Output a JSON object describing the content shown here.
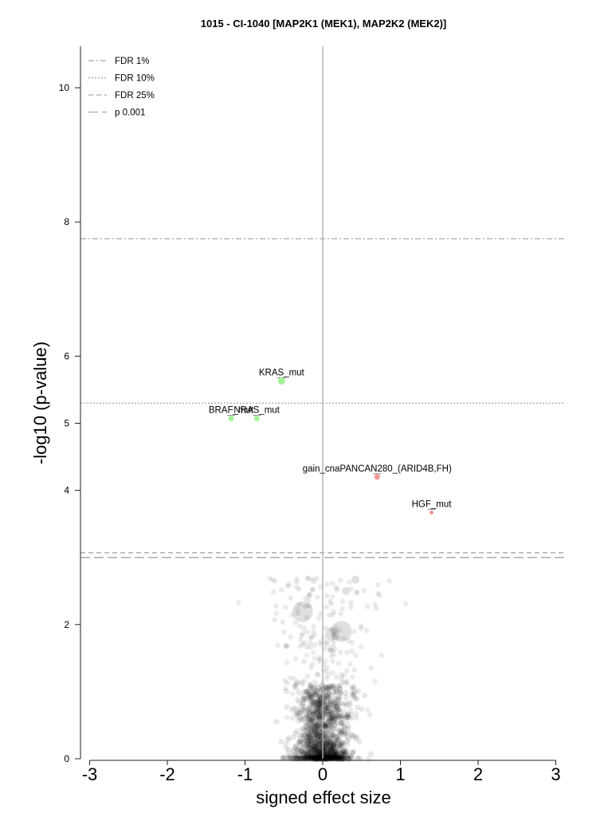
{
  "chart_data": {
    "type": "scatter",
    "title": "1015 - CI-1040 [MAP2K1 (MEK1), MAP2K2 (MEK2)]",
    "xlabel": "signed effect size",
    "ylabel": "-log10 (p-value)",
    "xlim": [
      -3.1,
      3.1
    ],
    "ylim": [
      0,
      10.6
    ],
    "x_ticks": [
      "-3",
      "-2",
      "-1",
      "0",
      "1",
      "2",
      "3"
    ],
    "y_ticks": [
      "0",
      "2",
      "4",
      "5",
      "6",
      "8",
      "10"
    ],
    "thresholds": [
      {
        "name": "FDR 1%",
        "y": 7.75,
        "style": "dash-dot",
        "color": "#a8a8a8"
      },
      {
        "name": "FDR 10%",
        "y": 5.3,
        "style": "dotted",
        "color": "#a8a8a8"
      },
      {
        "name": "FDR 25%",
        "y": 3.07,
        "style": "dashed",
        "color": "#a8a8a8"
      },
      {
        "name": "p 0.001",
        "y": 3.0,
        "style": "long-dash",
        "color": "#a8a8a8"
      }
    ],
    "legend_position": "top-left",
    "labeled_points": [
      {
        "label": "KRAS_mut",
        "x": -0.53,
        "y": 5.63,
        "color": "#a6f29a",
        "size": 9
      },
      {
        "label": "BRAF_mut",
        "x": -1.18,
        "y": 5.07,
        "color": "#a6f29a",
        "size": 7
      },
      {
        "label": "NRAS_mut",
        "x": -0.85,
        "y": 5.07,
        "color": "#a6f29a",
        "size": 7
      },
      {
        "label": "gain_cnaPANCAN280_(ARID4B,FH)",
        "x": 0.7,
        "y": 4.2,
        "color": "#f4948f",
        "size": 7
      },
      {
        "label": "HGF_mut",
        "x": 1.4,
        "y": 3.67,
        "color": "#f4948f",
        "size": 5
      }
    ],
    "background_points_color": "#000000",
    "large_background_points": [
      {
        "x": -0.26,
        "y": 2.19,
        "size": 26
      },
      {
        "x": 0.24,
        "y": 1.9,
        "size": 26
      },
      {
        "x": 0.12,
        "y": 1.86,
        "size": 17
      },
      {
        "x": 0.3,
        "y": 2.5,
        "size": 10
      },
      {
        "x": 0.42,
        "y": 2.67,
        "size": 10
      }
    ]
  }
}
